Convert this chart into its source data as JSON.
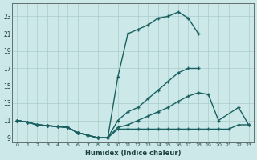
{
  "xlabel": "Humidex (Indice chaleur)",
  "xlim": [
    -0.5,
    23.5
  ],
  "ylim": [
    8.5,
    24.5
  ],
  "xticks": [
    0,
    1,
    2,
    3,
    4,
    5,
    6,
    7,
    8,
    9,
    10,
    11,
    12,
    13,
    14,
    15,
    16,
    17,
    18,
    19,
    20,
    21,
    22,
    23
  ],
  "yticks": [
    9,
    11,
    13,
    15,
    17,
    19,
    21,
    23
  ],
  "bg_color": "#cce8e8",
  "grid_color": "#aacccc",
  "line_color": "#1a6060",
  "curve1_x": [
    0,
    1,
    2,
    3,
    4,
    5,
    6,
    7,
    8,
    9,
    10,
    11,
    12,
    13,
    14,
    15,
    16,
    17,
    18
  ],
  "curve1_y": [
    11.0,
    10.8,
    10.5,
    10.4,
    10.3,
    10.2,
    9.6,
    9.3,
    9.0,
    9.0,
    16.0,
    21.0,
    21.5,
    22.0,
    22.8,
    23.0,
    23.5,
    22.8,
    21.0
  ],
  "curve2_x": [
    0,
    1,
    2,
    3,
    4,
    5,
    6,
    7,
    8,
    9,
    10,
    11,
    12,
    13,
    14,
    15,
    16,
    17,
    18
  ],
  "curve2_y": [
    11.0,
    10.8,
    10.5,
    10.4,
    10.3,
    10.2,
    9.6,
    9.3,
    9.0,
    9.0,
    11.0,
    12.0,
    12.5,
    13.5,
    14.5,
    15.5,
    16.5,
    17.0,
    17.0
  ],
  "curve3_x": [
    0,
    1,
    2,
    3,
    4,
    5,
    6,
    7,
    8,
    9,
    10,
    11,
    12,
    13,
    14,
    15,
    16,
    17,
    18,
    19,
    20,
    22,
    23
  ],
  "curve3_y": [
    11.0,
    10.8,
    10.5,
    10.4,
    10.3,
    10.2,
    9.6,
    9.3,
    9.0,
    9.0,
    10.2,
    10.5,
    11.0,
    11.5,
    12.0,
    12.5,
    13.2,
    13.8,
    14.2,
    14.0,
    11.0,
    12.5,
    10.5
  ],
  "curve4_x": [
    0,
    1,
    2,
    3,
    4,
    5,
    6,
    7,
    8,
    9,
    10,
    11,
    12,
    13,
    14,
    15,
    16,
    17,
    18,
    19,
    20,
    21,
    22,
    23
  ],
  "curve4_y": [
    11.0,
    10.8,
    10.5,
    10.4,
    10.3,
    10.2,
    9.6,
    9.3,
    9.0,
    9.0,
    10.0,
    10.0,
    10.0,
    10.0,
    10.0,
    10.0,
    10.0,
    10.0,
    10.0,
    10.0,
    10.0,
    10.0,
    10.5,
    10.5
  ]
}
